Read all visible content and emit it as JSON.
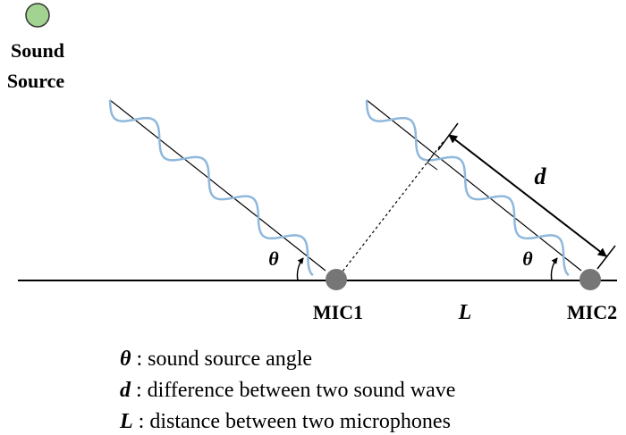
{
  "source": {
    "label_lines": [
      "Sound",
      "Source"
    ]
  },
  "angles": [
    "θ",
    "θ"
  ],
  "labels": {
    "d": "d",
    "L": "L"
  },
  "mics": [
    "MIC1",
    "MIC2"
  ],
  "legend": [
    {
      "symbol": "θ",
      "text": " : sound source angle"
    },
    {
      "symbol": "d",
      "text": " : difference between two sound wave"
    },
    {
      "symbol": "L",
      "text": " : distance between two microphones"
    }
  ]
}
